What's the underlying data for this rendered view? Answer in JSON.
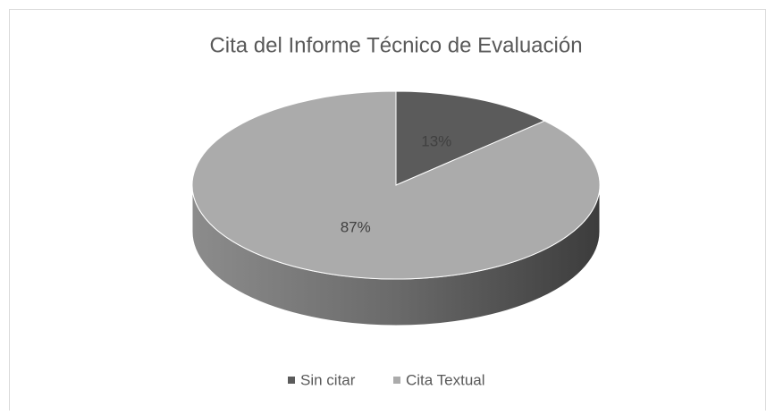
{
  "chart_data": {
    "type": "pie",
    "title": "Cita del Informe Técnico de Evaluación",
    "categories": [
      "Sin citar",
      "Cita Textual"
    ],
    "values": [
      13,
      87
    ],
    "value_labels": [
      "13%",
      "87%"
    ],
    "colors": [
      "#5b5b5b",
      "#ababab"
    ],
    "legend": "bottom",
    "three_d": true
  }
}
